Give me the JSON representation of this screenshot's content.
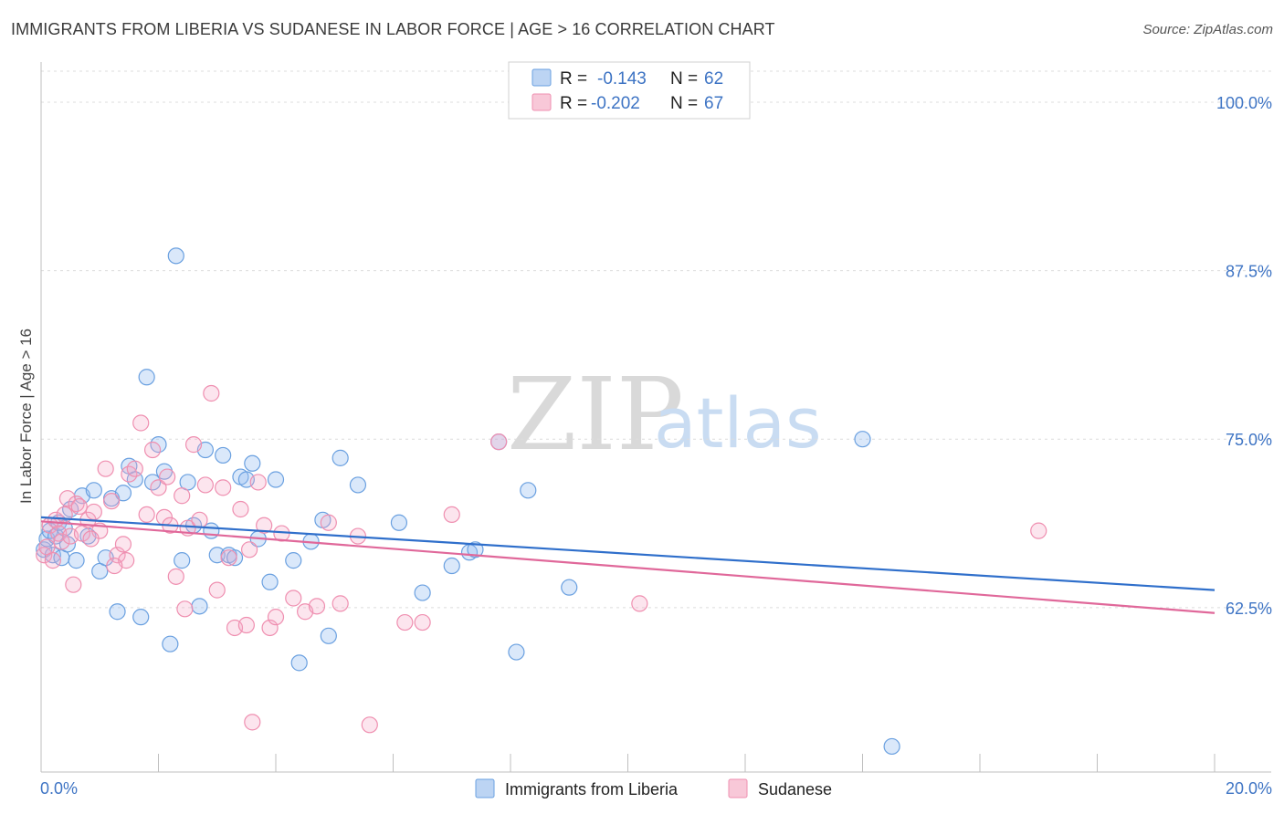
{
  "title": "IMMIGRANTS FROM LIBERIA VS SUDANESE IN LABOR FORCE | AGE > 16 CORRELATION CHART",
  "source": "Source: ZipAtlas.com",
  "watermark": {
    "zip": "ZIP",
    "atlas": "atlas"
  },
  "colors": {
    "liberia": "#6aa0e0",
    "liberia_line": "#2f6fcb",
    "sudanese": "#ef8fb0",
    "sudanese_line": "#e0689a",
    "tick": "#3e74c4"
  },
  "legend": {
    "items": [
      {
        "r_label": "R =",
        "r_value": "-0.143",
        "n_label": "N =",
        "n_value": "62"
      },
      {
        "r_label": "R =",
        "r_value": "-0.202",
        "n_label": "N =",
        "n_value": "67"
      }
    ]
  },
  "bottom_legend": [
    "Immigrants from Liberia",
    "Sudanese"
  ],
  "chart_data": {
    "type": "scatter",
    "title": "IMMIGRANTS FROM LIBERIA VS SUDANESE IN LABOR FORCE | AGE > 16 CORRELATION CHART",
    "xlabel": "",
    "ylabel": "In Labor Force | Age > 16",
    "xlim": [
      0,
      20
    ],
    "ylim": [
      50.3,
      102.3
    ],
    "x_tick_labels": [
      "0.0%",
      "20.0%"
    ],
    "y_ticks": [
      62.5,
      75.0,
      87.5,
      100.0
    ],
    "y_tick_labels": [
      "62.5%",
      "75.0%",
      "87.5%",
      "100.0%"
    ],
    "grid": true,
    "legend_position": "top-center",
    "series": [
      {
        "name": "Immigrants from Liberia",
        "R": -0.143,
        "N": 62,
        "trend": {
          "x": [
            0,
            20
          ],
          "y": [
            69.2,
            63.8
          ]
        },
        "points": [
          [
            0.05,
            66.8
          ],
          [
            0.1,
            67.6
          ],
          [
            0.15,
            68.2
          ],
          [
            0.2,
            66.4
          ],
          [
            0.25,
            67.8
          ],
          [
            0.3,
            68.8
          ],
          [
            0.35,
            66.2
          ],
          [
            0.4,
            68.4
          ],
          [
            0.45,
            67.2
          ],
          [
            0.5,
            69.8
          ],
          [
            0.6,
            66.0
          ],
          [
            0.7,
            70.8
          ],
          [
            0.8,
            67.8
          ],
          [
            0.9,
            71.2
          ],
          [
            1.0,
            65.2
          ],
          [
            1.1,
            66.2
          ],
          [
            1.2,
            70.6
          ],
          [
            1.3,
            62.2
          ],
          [
            1.4,
            71.0
          ],
          [
            1.5,
            73.0
          ],
          [
            1.6,
            72.0
          ],
          [
            1.7,
            61.8
          ],
          [
            1.8,
            79.6
          ],
          [
            1.9,
            71.8
          ],
          [
            2.0,
            74.6
          ],
          [
            2.1,
            72.6
          ],
          [
            2.2,
            59.8
          ],
          [
            2.3,
            88.6
          ],
          [
            2.4,
            66.0
          ],
          [
            2.5,
            71.8
          ],
          [
            2.6,
            68.6
          ],
          [
            2.7,
            62.6
          ],
          [
            2.8,
            74.2
          ],
          [
            2.9,
            68.2
          ],
          [
            3.0,
            66.4
          ],
          [
            3.1,
            73.8
          ],
          [
            3.2,
            66.4
          ],
          [
            3.3,
            66.2
          ],
          [
            3.4,
            72.2
          ],
          [
            3.5,
            72.0
          ],
          [
            3.6,
            73.2
          ],
          [
            3.7,
            67.6
          ],
          [
            3.9,
            64.4
          ],
          [
            4.0,
            72.0
          ],
          [
            4.4,
            58.4
          ],
          [
            4.6,
            67.4
          ],
          [
            4.8,
            69.0
          ],
          [
            4.9,
            60.4
          ],
          [
            5.1,
            73.6
          ],
          [
            5.4,
            71.6
          ],
          [
            6.1,
            68.8
          ],
          [
            6.5,
            63.6
          ],
          [
            7.0,
            65.6
          ],
          [
            7.3,
            66.6
          ],
          [
            7.4,
            66.8
          ],
          [
            7.8,
            74.8
          ],
          [
            8.1,
            59.2
          ],
          [
            8.3,
            71.2
          ],
          [
            9.0,
            64.0
          ],
          [
            14.0,
            75.0
          ],
          [
            14.5,
            52.2
          ],
          [
            4.3,
            66.0
          ]
        ]
      },
      {
        "name": "Sudanese",
        "R": -0.202,
        "N": 67,
        "trend": {
          "x": [
            0,
            20
          ],
          "y": [
            68.9,
            62.1
          ]
        },
        "points": [
          [
            0.05,
            66.4
          ],
          [
            0.1,
            67.0
          ],
          [
            0.15,
            68.6
          ],
          [
            0.2,
            66.0
          ],
          [
            0.25,
            69.0
          ],
          [
            0.3,
            68.0
          ],
          [
            0.35,
            67.4
          ],
          [
            0.4,
            69.4
          ],
          [
            0.45,
            70.6
          ],
          [
            0.5,
            67.8
          ],
          [
            0.55,
            64.2
          ],
          [
            0.6,
            70.2
          ],
          [
            0.7,
            68.0
          ],
          [
            0.8,
            69.0
          ],
          [
            0.9,
            69.6
          ],
          [
            1.0,
            68.2
          ],
          [
            1.1,
            72.8
          ],
          [
            1.2,
            70.4
          ],
          [
            1.3,
            66.4
          ],
          [
            1.4,
            67.2
          ],
          [
            1.5,
            72.4
          ],
          [
            1.6,
            72.8
          ],
          [
            1.7,
            76.2
          ],
          [
            1.8,
            69.4
          ],
          [
            1.9,
            74.2
          ],
          [
            2.0,
            71.4
          ],
          [
            2.1,
            69.2
          ],
          [
            2.2,
            68.6
          ],
          [
            2.3,
            64.8
          ],
          [
            2.4,
            70.8
          ],
          [
            2.5,
            68.4
          ],
          [
            2.6,
            74.6
          ],
          [
            2.7,
            69.0
          ],
          [
            2.8,
            71.6
          ],
          [
            2.9,
            78.4
          ],
          [
            3.0,
            63.8
          ],
          [
            3.1,
            71.4
          ],
          [
            3.2,
            66.2
          ],
          [
            3.3,
            61.0
          ],
          [
            3.4,
            69.8
          ],
          [
            3.5,
            61.2
          ],
          [
            3.6,
            54.0
          ],
          [
            3.7,
            71.8
          ],
          [
            3.8,
            68.6
          ],
          [
            3.9,
            61.0
          ],
          [
            4.0,
            61.8
          ],
          [
            4.3,
            63.2
          ],
          [
            4.5,
            62.2
          ],
          [
            4.7,
            62.6
          ],
          [
            4.9,
            68.8
          ],
          [
            5.1,
            62.8
          ],
          [
            5.4,
            67.8
          ],
          [
            5.6,
            53.8
          ],
          [
            6.2,
            61.4
          ],
          [
            6.5,
            61.4
          ],
          [
            7.0,
            69.4
          ],
          [
            7.8,
            74.8
          ],
          [
            10.2,
            62.8
          ],
          [
            17.0,
            68.2
          ],
          [
            1.45,
            66.0
          ],
          [
            0.85,
            67.6
          ],
          [
            2.15,
            72.2
          ],
          [
            3.55,
            66.8
          ],
          [
            4.1,
            68.0
          ],
          [
            1.25,
            65.6
          ],
          [
            0.65,
            70.0
          ],
          [
            2.45,
            62.4
          ]
        ]
      }
    ]
  }
}
